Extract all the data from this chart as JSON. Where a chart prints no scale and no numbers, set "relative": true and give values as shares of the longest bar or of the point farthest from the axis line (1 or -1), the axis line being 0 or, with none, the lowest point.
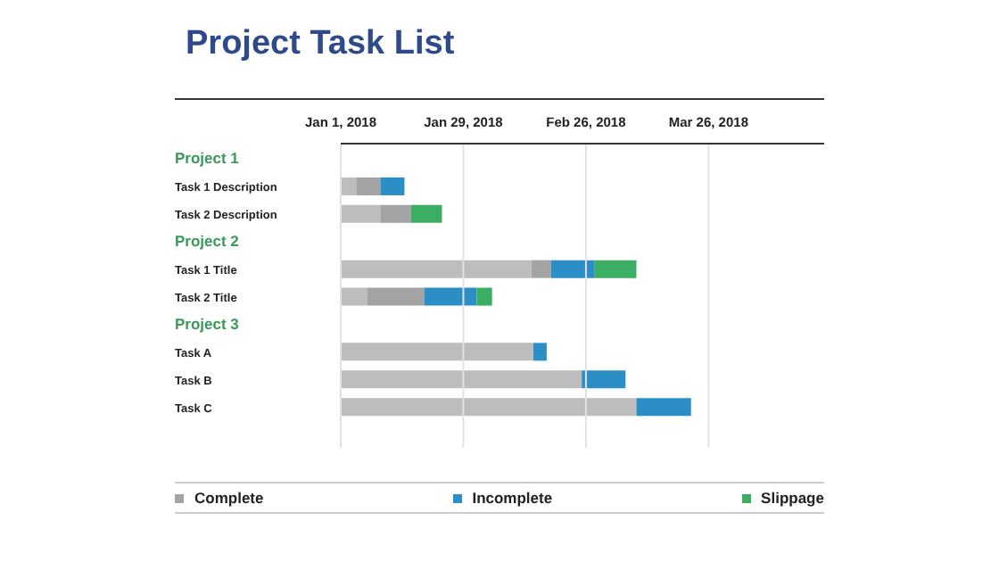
{
  "chart_data": {
    "type": "bar",
    "orientation": "horizontal",
    "stacked": true,
    "relative": true,
    "title": "Project Task List",
    "categories": [
      "Project 1",
      "Task 1 Description",
      "Task 2 Description",
      "Project 2",
      "Task 1 Title",
      "Task 2 Title",
      "Project 3",
      "Task A",
      "Task B",
      "Task C",
      null
    ],
    "series": [
      {
        "color": "#bdbdbd",
        "values": [
          null,
          0.044,
          0.113,
          null,
          0.544,
          0.075,
          null,
          0.55,
          0.688,
          0.844,
          null
        ]
      },
      {
        "name": "Complete",
        "color": "#a3a3a3",
        "values": [
          null,
          0.069,
          0.088,
          null,
          0.056,
          0.163,
          null,
          null,
          null,
          null,
          null
        ]
      },
      {
        "name": "Incomplete",
        "color": "#2b8fc6",
        "values": [
          null,
          0.069,
          null,
          null,
          0.125,
          0.15,
          null,
          0.038,
          0.125,
          0.156,
          null
        ]
      },
      {
        "name": "Slippage",
        "color": "#3cae63",
        "values": [
          null,
          null,
          0.088,
          null,
          0.119,
          0.044,
          null,
          null,
          null,
          null,
          null
        ]
      }
    ],
    "ref_lines": [
      {
        "axis": "x",
        "value": 0,
        "label": "Jan 1, 2018",
        "color": "#e2e2e2"
      },
      {
        "axis": "x",
        "value": 0.35,
        "label": "Jan 29, 2018",
        "color": "#e2e2e2"
      },
      {
        "axis": "x",
        "value": 0.7,
        "label": "Feb 26, 2018",
        "color": "#e2e2e2"
      },
      {
        "axis": "x",
        "value": 1.05,
        "label": "Mar 26, 2018",
        "color": "#e2e2e2"
      }
    ],
    "legend": "bottom"
  }
}
